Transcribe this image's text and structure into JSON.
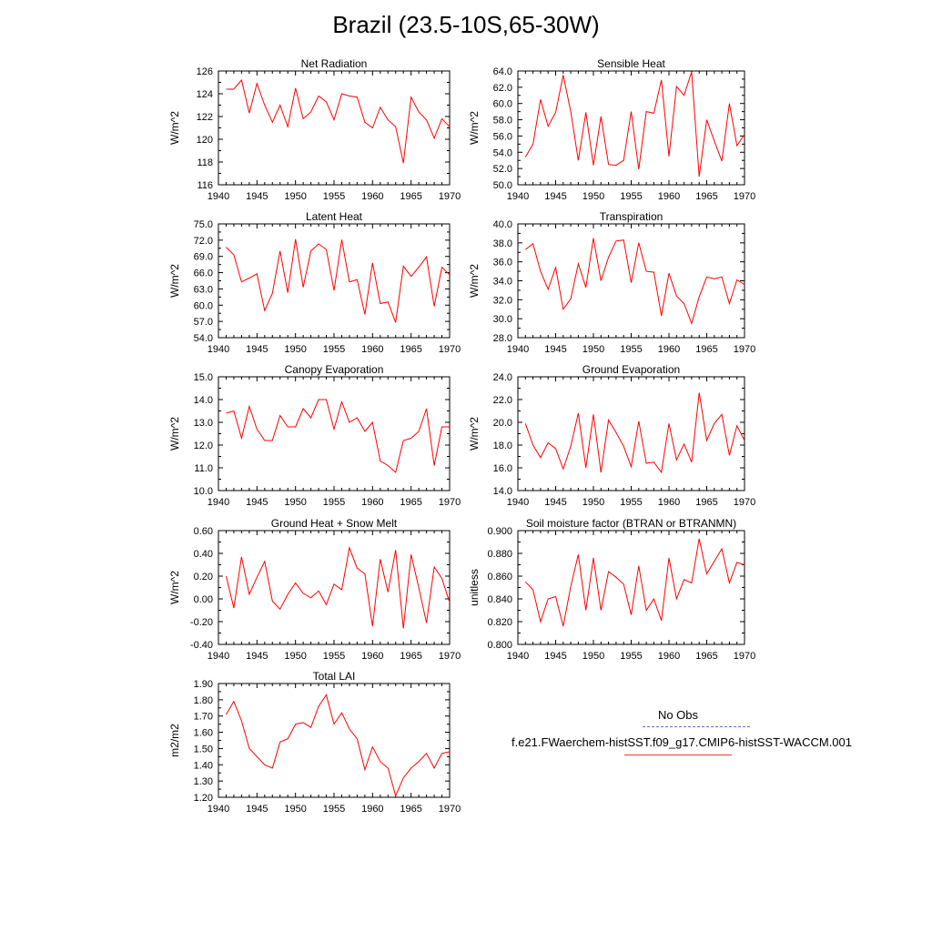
{
  "title": "Brazil (23.5-10S,65-30W)",
  "legend": {
    "obs_label": "No Obs",
    "model_label": "f.e21.FWaerchem-histSST.f09_g17.CMIP6-histSST-WACCM.001",
    "obs_color": "#5b6ec8",
    "model_color": "#ff0000"
  },
  "chart_data": [
    {
      "type": "line",
      "title": "Net Radiation",
      "ylabel": "W/m^2",
      "xlabel": "",
      "xlim": [
        1940,
        1970
      ],
      "ylim": [
        116,
        126
      ],
      "x_ticks": [
        1940,
        1945,
        1950,
        1955,
        1960,
        1965,
        1970
      ],
      "y_ticks": [
        "116",
        "118",
        "120",
        "122",
        "124",
        "126"
      ],
      "x": [
        1941,
        1942,
        1943,
        1944,
        1945,
        1946,
        1947,
        1948,
        1949,
        1950,
        1951,
        1952,
        1953,
        1954,
        1955,
        1956,
        1957,
        1958,
        1959,
        1960,
        1961,
        1962,
        1963,
        1964,
        1965,
        1966,
        1967,
        1968,
        1969,
        1970
      ],
      "series": [
        {
          "values": [
            124.4,
            124.4,
            125.2,
            122.3,
            124.9,
            123.0,
            121.5,
            123.0,
            121.1,
            124.5,
            121.8,
            122.4,
            123.8,
            123.3,
            121.7,
            124.0,
            123.8,
            123.7,
            121.5,
            121.0,
            122.8,
            121.7,
            121.1,
            117.9,
            123.7,
            122.4,
            121.7,
            120.1,
            121.8,
            121.1
          ]
        }
      ]
    },
    {
      "type": "line",
      "title": "Sensible Heat",
      "ylabel": "W/m^2",
      "xlabel": "",
      "xlim": [
        1940,
        1970
      ],
      "ylim": [
        50,
        64
      ],
      "x_ticks": [
        1940,
        1945,
        1950,
        1955,
        1960,
        1965,
        1970
      ],
      "y_ticks": [
        "50.0",
        "52.0",
        "54.0",
        "56.0",
        "58.0",
        "60.0",
        "62.0",
        "64.0"
      ],
      "x": [
        1941,
        1942,
        1943,
        1944,
        1945,
        1946,
        1947,
        1948,
        1949,
        1950,
        1951,
        1952,
        1953,
        1954,
        1955,
        1956,
        1957,
        1958,
        1959,
        1960,
        1961,
        1962,
        1963,
        1964,
        1965,
        1966,
        1967,
        1968,
        1969,
        1970
      ],
      "series": [
        {
          "values": [
            53.4,
            55.0,
            60.5,
            57.2,
            58.9,
            63.5,
            59.0,
            53.0,
            58.9,
            52.4,
            58.4,
            52.5,
            52.4,
            53.0,
            59.0,
            51.9,
            59.0,
            58.8,
            62.9,
            53.5,
            62.1,
            61.0,
            63.9,
            51.0,
            58.0,
            55.4,
            52.9,
            60.0,
            54.8,
            56.2
          ]
        }
      ]
    },
    {
      "type": "line",
      "title": "Latent Heat",
      "ylabel": "W/m^2",
      "xlabel": "",
      "xlim": [
        1940,
        1970
      ],
      "ylim": [
        54,
        75
      ],
      "x_ticks": [
        1940,
        1945,
        1950,
        1955,
        1960,
        1965,
        1970
      ],
      "y_ticks": [
        "54.0",
        "57.0",
        "60.0",
        "63.0",
        "66.0",
        "69.0",
        "72.0",
        "75.0"
      ],
      "x": [
        1941,
        1942,
        1943,
        1944,
        1945,
        1946,
        1947,
        1948,
        1949,
        1950,
        1951,
        1952,
        1953,
        1954,
        1955,
        1956,
        1957,
        1958,
        1959,
        1960,
        1961,
        1962,
        1963,
        1964,
        1965,
        1966,
        1967,
        1968,
        1969,
        1970
      ],
      "series": [
        {
          "values": [
            70.7,
            69.3,
            64.3,
            65.0,
            65.8,
            59.0,
            62.2,
            70.0,
            62.3,
            72.2,
            63.3,
            70.0,
            71.3,
            70.3,
            62.7,
            72.1,
            64.3,
            64.7,
            58.3,
            67.8,
            60.3,
            60.6,
            56.8,
            67.2,
            65.3,
            67.0,
            68.9,
            59.8,
            67.0,
            65.6
          ]
        }
      ]
    },
    {
      "type": "line",
      "title": "Transpiration",
      "ylabel": "W/m^2",
      "xlabel": "",
      "xlim": [
        1940,
        1970
      ],
      "ylim": [
        28,
        40
      ],
      "x_ticks": [
        1940,
        1945,
        1950,
        1955,
        1960,
        1965,
        1970
      ],
      "y_ticks": [
        "28.0",
        "30.0",
        "32.0",
        "34.0",
        "36.0",
        "38.0",
        "40.0"
      ],
      "x": [
        1941,
        1942,
        1943,
        1944,
        1945,
        1946,
        1947,
        1948,
        1949,
        1950,
        1951,
        1952,
        1953,
        1954,
        1955,
        1956,
        1957,
        1958,
        1959,
        1960,
        1961,
        1962,
        1963,
        1964,
        1965,
        1966,
        1967,
        1968,
        1969,
        1970
      ],
      "series": [
        {
          "values": [
            37.3,
            37.9,
            35.0,
            33.1,
            35.4,
            31.0,
            32.1,
            35.8,
            33.3,
            38.5,
            34.0,
            36.5,
            38.2,
            38.3,
            33.8,
            38.0,
            35.0,
            34.9,
            30.3,
            34.8,
            32.4,
            31.6,
            29.5,
            32.3,
            34.4,
            34.2,
            34.4,
            31.6,
            34.1,
            33.6
          ]
        }
      ]
    },
    {
      "type": "line",
      "title": "Canopy Evaporation",
      "ylabel": "W/m^2",
      "xlabel": "",
      "xlim": [
        1940,
        1970
      ],
      "ylim": [
        10,
        15
      ],
      "x_ticks": [
        1940,
        1945,
        1950,
        1955,
        1960,
        1965,
        1970
      ],
      "y_ticks": [
        "10.0",
        "11.0",
        "12.0",
        "13.0",
        "14.0",
        "15.0"
      ],
      "x": [
        1941,
        1942,
        1943,
        1944,
        1945,
        1946,
        1947,
        1948,
        1949,
        1950,
        1951,
        1952,
        1953,
        1954,
        1955,
        1956,
        1957,
        1958,
        1959,
        1960,
        1961,
        1962,
        1963,
        1964,
        1965,
        1966,
        1967,
        1968,
        1969,
        1970
      ],
      "series": [
        {
          "values": [
            13.4,
            13.5,
            12.3,
            13.7,
            12.7,
            12.2,
            12.2,
            13.3,
            12.8,
            12.8,
            13.6,
            13.2,
            14.0,
            14.0,
            12.7,
            13.9,
            13.0,
            13.2,
            12.6,
            13.0,
            11.3,
            11.1,
            10.8,
            12.2,
            12.3,
            12.6,
            13.6,
            11.1,
            12.8,
            12.8
          ]
        }
      ]
    },
    {
      "type": "line",
      "title": "Ground Evaporation",
      "ylabel": "W/m^2",
      "xlabel": "",
      "xlim": [
        1940,
        1970
      ],
      "ylim": [
        14,
        24
      ],
      "x_ticks": [
        1940,
        1945,
        1950,
        1955,
        1960,
        1965,
        1970
      ],
      "y_ticks": [
        "14.0",
        "16.0",
        "18.0",
        "20.0",
        "22.0",
        "24.0"
      ],
      "x": [
        1941,
        1942,
        1943,
        1944,
        1945,
        1946,
        1947,
        1948,
        1949,
        1950,
        1951,
        1952,
        1953,
        1954,
        1955,
        1956,
        1957,
        1958,
        1959,
        1960,
        1961,
        1962,
        1963,
        1964,
        1965,
        1966,
        1967,
        1968,
        1969,
        1970
      ],
      "series": [
        {
          "values": [
            19.9,
            18.0,
            16.9,
            18.2,
            17.7,
            15.9,
            17.9,
            20.8,
            16.0,
            20.7,
            15.6,
            20.2,
            19.1,
            17.9,
            16.1,
            20.1,
            16.4,
            16.5,
            15.6,
            19.9,
            16.7,
            18.1,
            16.5,
            22.6,
            18.4,
            19.9,
            20.7,
            17.1,
            19.7,
            18.4
          ]
        }
      ]
    },
    {
      "type": "line",
      "title": "Ground Heat + Snow Melt",
      "ylabel": "W/m^2",
      "xlabel": "",
      "xlim": [
        1940,
        1970
      ],
      "ylim": [
        -0.4,
        0.6
      ],
      "x_ticks": [
        1940,
        1945,
        1950,
        1955,
        1960,
        1965,
        1970
      ],
      "y_ticks": [
        "-0.40",
        "-0.20",
        "0.00",
        "0.20",
        "0.40",
        "0.60"
      ],
      "x": [
        1941,
        1942,
        1943,
        1944,
        1945,
        1946,
        1947,
        1948,
        1949,
        1950,
        1951,
        1952,
        1953,
        1954,
        1955,
        1956,
        1957,
        1958,
        1959,
        1960,
        1961,
        1962,
        1963,
        1964,
        1965,
        1966,
        1967,
        1968,
        1969,
        1970
      ],
      "series": [
        {
          "values": [
            0.2,
            -0.08,
            0.37,
            0.04,
            0.19,
            0.33,
            -0.02,
            -0.09,
            0.04,
            0.14,
            0.05,
            0.01,
            0.07,
            -0.05,
            0.13,
            0.08,
            0.45,
            0.27,
            0.22,
            -0.24,
            0.35,
            0.06,
            0.43,
            -0.26,
            0.39,
            0.1,
            -0.21,
            0.28,
            0.18,
            -0.03
          ]
        }
      ]
    },
    {
      "type": "line",
      "title": "Soil moisture factor (BTRAN or BTRANMN)",
      "ylabel": "unitless",
      "xlabel": "",
      "xlim": [
        1940,
        1970
      ],
      "ylim": [
        0.8,
        0.9
      ],
      "x_ticks": [
        1940,
        1945,
        1950,
        1955,
        1960,
        1965,
        1970
      ],
      "y_ticks": [
        "0.800",
        "0.820",
        "0.840",
        "0.860",
        "0.880",
        "0.900"
      ],
      "x": [
        1941,
        1942,
        1943,
        1944,
        1945,
        1946,
        1947,
        1948,
        1949,
        1950,
        1951,
        1952,
        1953,
        1954,
        1955,
        1956,
        1957,
        1958,
        1959,
        1960,
        1961,
        1962,
        1963,
        1964,
        1965,
        1966,
        1967,
        1968,
        1969,
        1970
      ],
      "series": [
        {
          "values": [
            0.855,
            0.848,
            0.82,
            0.84,
            0.842,
            0.816,
            0.851,
            0.879,
            0.83,
            0.876,
            0.83,
            0.864,
            0.859,
            0.853,
            0.826,
            0.869,
            0.83,
            0.84,
            0.821,
            0.876,
            0.84,
            0.857,
            0.854,
            0.893,
            0.862,
            0.873,
            0.884,
            0.854,
            0.872,
            0.87
          ]
        }
      ]
    },
    {
      "type": "line",
      "title": "Total LAI",
      "ylabel": "m2/m2",
      "xlabel": "",
      "xlim": [
        1940,
        1970
      ],
      "ylim": [
        1.2,
        1.9
      ],
      "x_ticks": [
        1940,
        1945,
        1950,
        1955,
        1960,
        1965,
        1970
      ],
      "y_ticks": [
        "1.20",
        "1.30",
        "1.40",
        "1.50",
        "1.60",
        "1.70",
        "1.80",
        "1.90"
      ],
      "x": [
        1941,
        1942,
        1943,
        1944,
        1945,
        1946,
        1947,
        1948,
        1949,
        1950,
        1951,
        1952,
        1953,
        1954,
        1955,
        1956,
        1957,
        1958,
        1959,
        1960,
        1961,
        1962,
        1963,
        1964,
        1965,
        1966,
        1967,
        1968,
        1969,
        1970
      ],
      "series": [
        {
          "values": [
            1.71,
            1.79,
            1.67,
            1.5,
            1.45,
            1.4,
            1.38,
            1.54,
            1.56,
            1.65,
            1.66,
            1.63,
            1.76,
            1.83,
            1.65,
            1.72,
            1.62,
            1.56,
            1.37,
            1.51,
            1.42,
            1.38,
            1.21,
            1.32,
            1.38,
            1.42,
            1.47,
            1.38,
            1.47,
            1.48
          ]
        }
      ]
    }
  ]
}
